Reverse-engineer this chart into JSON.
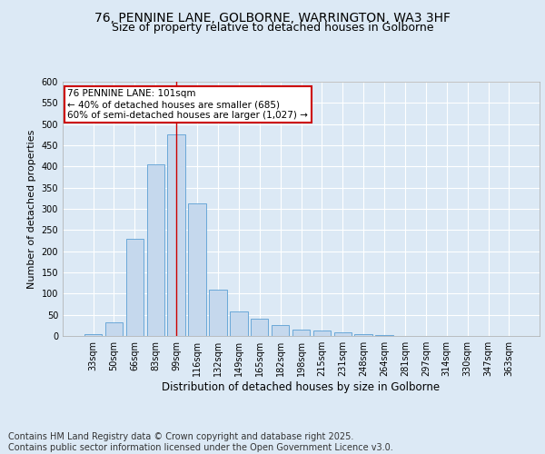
{
  "title": "76, PENNINE LANE, GOLBORNE, WARRINGTON, WA3 3HF",
  "subtitle": "Size of property relative to detached houses in Golborne",
  "xlabel": "Distribution of detached houses by size in Golborne",
  "ylabel": "Number of detached properties",
  "categories": [
    "33sqm",
    "50sqm",
    "66sqm",
    "83sqm",
    "99sqm",
    "116sqm",
    "132sqm",
    "149sqm",
    "165sqm",
    "182sqm",
    "198sqm",
    "215sqm",
    "231sqm",
    "248sqm",
    "264sqm",
    "281sqm",
    "297sqm",
    "314sqm",
    "330sqm",
    "347sqm",
    "363sqm"
  ],
  "values": [
    5,
    32,
    229,
    405,
    475,
    312,
    110,
    57,
    40,
    25,
    15,
    12,
    9,
    4,
    2,
    1,
    0,
    0,
    0,
    0,
    0
  ],
  "bar_color": "#c5d8ed",
  "bar_edge_color": "#5a9fd4",
  "vline_x_index": 4,
  "vline_color": "#cc0000",
  "annotation_text": "76 PENNINE LANE: 101sqm\n← 40% of detached houses are smaller (685)\n60% of semi-detached houses are larger (1,027) →",
  "annotation_box_color": "#ffffff",
  "annotation_box_edge_color": "#cc0000",
  "ylim": [
    0,
    600
  ],
  "yticks": [
    0,
    50,
    100,
    150,
    200,
    250,
    300,
    350,
    400,
    450,
    500,
    550,
    600
  ],
  "footer": "Contains HM Land Registry data © Crown copyright and database right 2025.\nContains public sector information licensed under the Open Government Licence v3.0.",
  "bg_color": "#dce9f5",
  "plot_bg_color": "#dce9f5",
  "grid_color": "#ffffff",
  "title_fontsize": 10,
  "subtitle_fontsize": 9,
  "footer_fontsize": 7,
  "annotation_fontsize": 7.5,
  "ylabel_fontsize": 8,
  "xlabel_fontsize": 8.5,
  "tick_fontsize": 7
}
